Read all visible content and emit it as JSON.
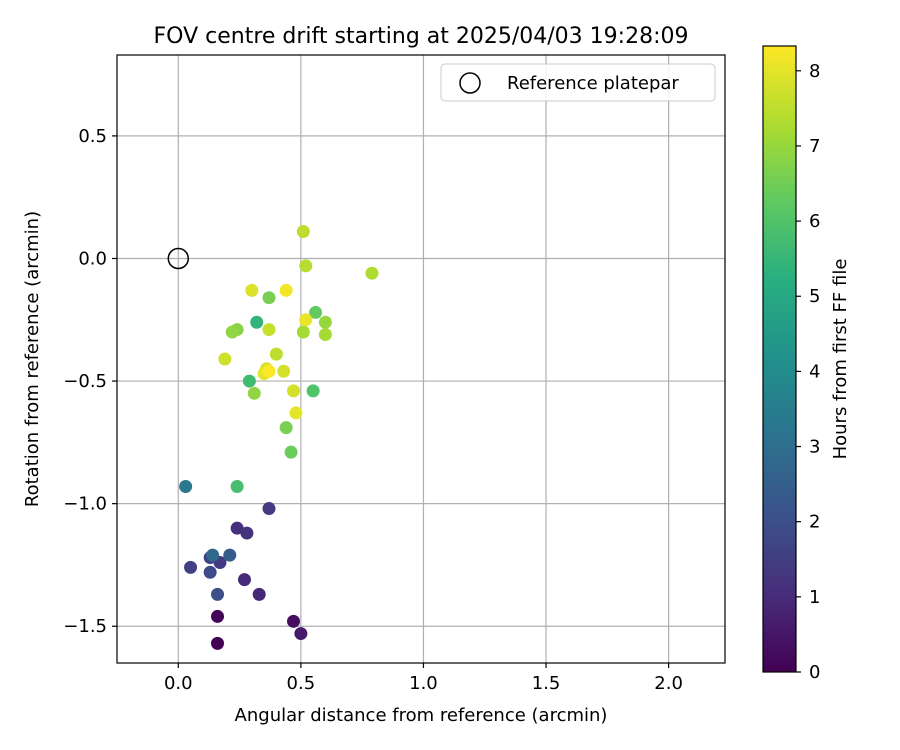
{
  "chart_data": {
    "type": "scatter",
    "title": "FOV centre drift starting at 2025/04/03 19:28:09",
    "xlabel": "Angular distance from reference (arcmin)",
    "ylabel": "Rotation from reference (arcmin)",
    "xlim": [
      -0.25,
      2.23
    ],
    "ylim": [
      -1.65,
      0.83
    ],
    "xticks": [
      0.0,
      0.5,
      1.0,
      1.5,
      2.0
    ],
    "xtick_labels": [
      "0.0",
      "0.5",
      "1.0",
      "1.5",
      "2.0"
    ],
    "yticks": [
      0.5,
      0.0,
      -0.5,
      -1.0,
      -1.5
    ],
    "ytick_labels": [
      "0.5",
      "0.0",
      "−0.5",
      "−1.0",
      "−1.5"
    ],
    "grid": true,
    "legend": {
      "label": "Reference platepar",
      "location": "top-right",
      "marker": "open-circle"
    },
    "reference": {
      "x": 0.0,
      "y": 0.0
    },
    "colorbar": {
      "label": "Hours from first FF file",
      "colormap": "viridis",
      "range": [
        0,
        8.33
      ],
      "ticks": [
        0,
        1,
        2,
        3,
        4,
        5,
        6,
        7,
        8
      ],
      "tick_labels": [
        "0",
        "1",
        "2",
        "3",
        "4",
        "5",
        "6",
        "7",
        "8"
      ]
    },
    "points": [
      {
        "x": 0.16,
        "y": -1.57,
        "hours": 0.0
      },
      {
        "x": 0.16,
        "y": -1.46,
        "hours": 0.1
      },
      {
        "x": 0.47,
        "y": -1.48,
        "hours": 0.3
      },
      {
        "x": 0.5,
        "y": -1.53,
        "hours": 0.6
      },
      {
        "x": 0.33,
        "y": -1.37,
        "hours": 0.9
      },
      {
        "x": 0.27,
        "y": -1.31,
        "hours": 1.0
      },
      {
        "x": 0.24,
        "y": -1.1,
        "hours": 1.1
      },
      {
        "x": 0.28,
        "y": -1.12,
        "hours": 1.2
      },
      {
        "x": 0.37,
        "y": -1.02,
        "hours": 1.4
      },
      {
        "x": 0.17,
        "y": -1.24,
        "hours": 1.4
      },
      {
        "x": 0.05,
        "y": -1.26,
        "hours": 1.6
      },
      {
        "x": 0.13,
        "y": -1.22,
        "hours": 1.6
      },
      {
        "x": 0.13,
        "y": -1.28,
        "hours": 1.9
      },
      {
        "x": 0.16,
        "y": -1.37,
        "hours": 2.0
      },
      {
        "x": 0.21,
        "y": -1.21,
        "hours": 2.4
      },
      {
        "x": 0.14,
        "y": -1.21,
        "hours": 2.8
      },
      {
        "x": 0.03,
        "y": -0.93,
        "hours": 3.3
      },
      {
        "x": 0.32,
        "y": -0.26,
        "hours": 5.4
      },
      {
        "x": 0.29,
        "y": -0.5,
        "hours": 5.7
      },
      {
        "x": 0.24,
        "y": -0.93,
        "hours": 5.8
      },
      {
        "x": 0.55,
        "y": -0.54,
        "hours": 6.0
      },
      {
        "x": 0.56,
        "y": -0.22,
        "hours": 6.3
      },
      {
        "x": 0.46,
        "y": -0.79,
        "hours": 6.4
      },
      {
        "x": 0.37,
        "y": -0.16,
        "hours": 6.6
      },
      {
        "x": 0.44,
        "y": -0.69,
        "hours": 6.6
      },
      {
        "x": 0.24,
        "y": -0.29,
        "hours": 6.8
      },
      {
        "x": 0.22,
        "y": -0.3,
        "hours": 6.9
      },
      {
        "x": 0.31,
        "y": -0.55,
        "hours": 6.9
      },
      {
        "x": 0.6,
        "y": -0.26,
        "hours": 7.0
      },
      {
        "x": 0.6,
        "y": -0.31,
        "hours": 7.2
      },
      {
        "x": 0.51,
        "y": -0.3,
        "hours": 7.2
      },
      {
        "x": 0.79,
        "y": -0.06,
        "hours": 7.3
      },
      {
        "x": 0.52,
        "y": -0.03,
        "hours": 7.4
      },
      {
        "x": 0.51,
        "y": 0.11,
        "hours": 7.5
      },
      {
        "x": 0.4,
        "y": -0.39,
        "hours": 7.5
      },
      {
        "x": 0.37,
        "y": -0.29,
        "hours": 7.6
      },
      {
        "x": 0.19,
        "y": -0.41,
        "hours": 7.7
      },
      {
        "x": 0.43,
        "y": -0.46,
        "hours": 7.8
      },
      {
        "x": 0.47,
        "y": -0.54,
        "hours": 7.8
      },
      {
        "x": 0.3,
        "y": -0.13,
        "hours": 7.9
      },
      {
        "x": 0.36,
        "y": -0.45,
        "hours": 7.9
      },
      {
        "x": 0.35,
        "y": -0.47,
        "hours": 8.0
      },
      {
        "x": 0.48,
        "y": -0.63,
        "hours": 8.0
      },
      {
        "x": 0.52,
        "y": -0.25,
        "hours": 8.1
      },
      {
        "x": 0.44,
        "y": -0.13,
        "hours": 8.2
      },
      {
        "x": 0.37,
        "y": -0.46,
        "hours": 8.3
      }
    ]
  }
}
